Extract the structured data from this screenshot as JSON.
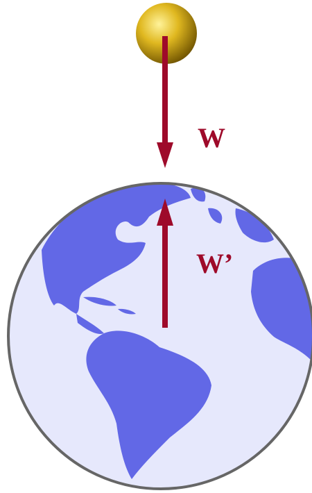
{
  "labels": {
    "weight": "W",
    "reaction": "W’"
  }
}
